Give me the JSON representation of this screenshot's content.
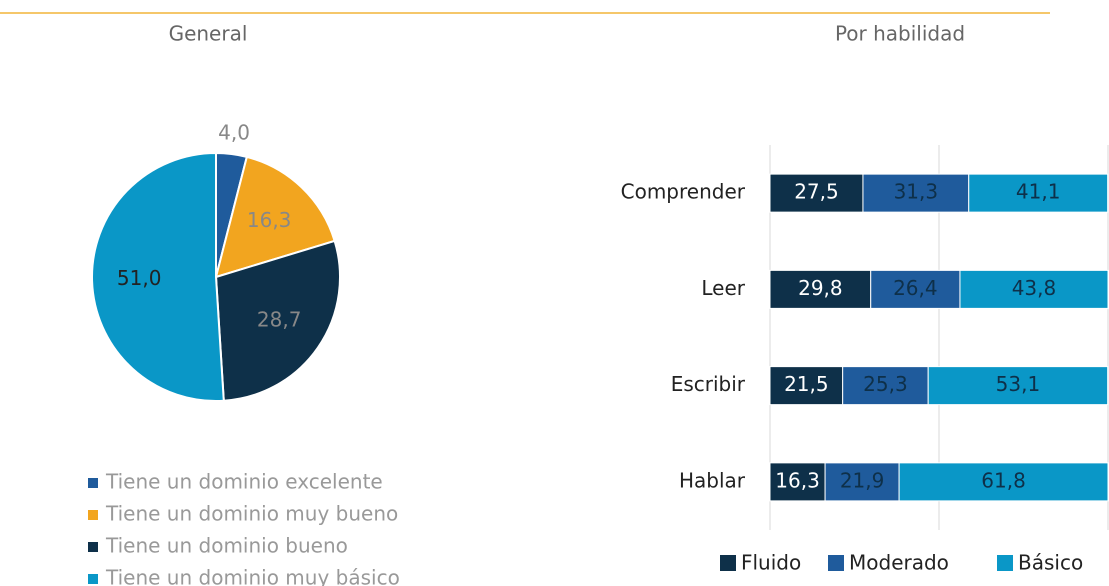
{
  "chart_data": [
    {
      "type": "pie",
      "title": "General",
      "categories": [
        "Tiene un dominio excelente",
        "Tiene un dominio muy bueno",
        "Tiene un dominio bueno",
        "Tiene un dominio muy básico"
      ],
      "values": [
        4.0,
        16.3,
        28.7,
        51.0
      ],
      "value_labels": [
        "4,0",
        "16,3",
        "28,7",
        "51,0"
      ],
      "colors": [
        "#1f5b9c",
        "#f2a51f",
        "#0e3049",
        "#0a97c7"
      ]
    },
    {
      "type": "stacked_bar_horizontal",
      "title": "Por habilidad",
      "categories": [
        "Comprender",
        "Leer",
        "Escribir",
        "Hablar"
      ],
      "series": [
        {
          "name": "Fluido",
          "color": "#0e3049",
          "values": [
            27.5,
            29.8,
            21.5,
            16.3
          ],
          "value_labels": [
            "27,5",
            "29,8",
            "21,5",
            "16,3"
          ]
        },
        {
          "name": "Moderado",
          "color": "#1f5b9c",
          "values": [
            31.3,
            26.4,
            25.3,
            21.9
          ],
          "value_labels": [
            "31,3",
            "26,4",
            "25,3",
            "21,9"
          ]
        },
        {
          "name": "Básico",
          "color": "#0a97c7",
          "values": [
            41.1,
            43.8,
            53.1,
            61.8
          ],
          "value_labels": [
            "41,1",
            "43,8",
            "53,1",
            "61,8"
          ]
        }
      ],
      "xlim": [
        0,
        100
      ],
      "xticks": [
        0,
        50,
        100
      ],
      "grid": true
    }
  ]
}
